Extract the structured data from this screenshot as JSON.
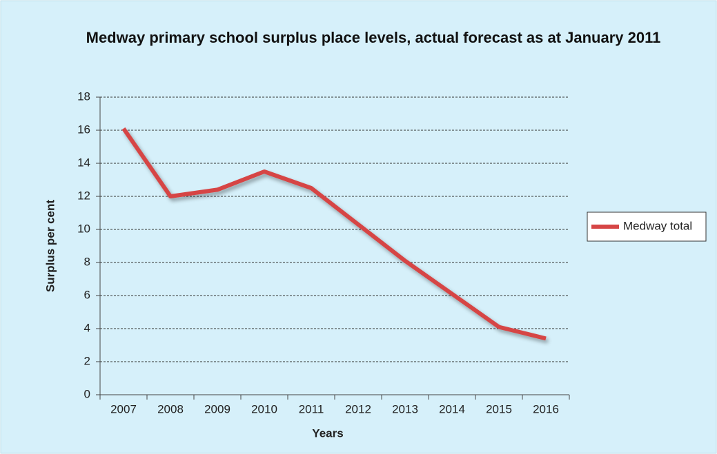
{
  "chart_data": {
    "type": "line",
    "title": "Medway primary school surplus place levels, actual forecast as at January 2011",
    "x_label": "Years",
    "y_label": "Surplus per cent",
    "categories": [
      "2007",
      "2008",
      "2009",
      "2010",
      "2011",
      "2012",
      "2013",
      "2014",
      "2015",
      "2016"
    ],
    "series": [
      {
        "name": "Medway total",
        "color": "#d64545",
        "values": [
          16.1,
          12.0,
          12.4,
          13.5,
          12.5,
          10.3,
          8.1,
          6.1,
          4.1,
          3.4
        ]
      }
    ],
    "ylim": [
      0,
      18
    ],
    "yticks": [
      0,
      2,
      4,
      6,
      8,
      10,
      12,
      14,
      16,
      18
    ],
    "grid": true,
    "legend": "right"
  }
}
